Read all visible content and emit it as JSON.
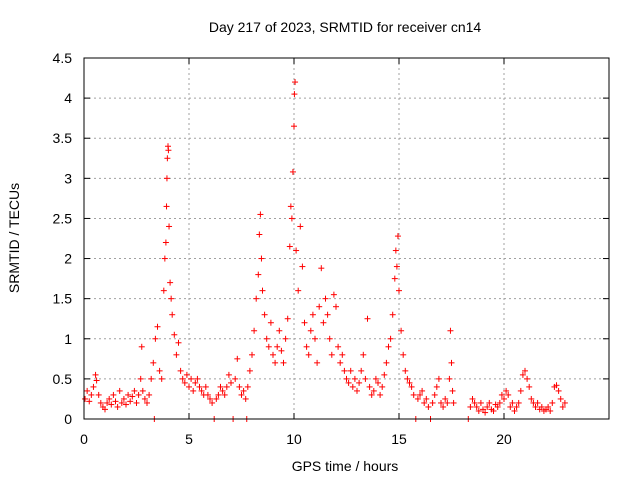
{
  "chart_data": {
    "type": "scatter",
    "title": "Day 217 of 2023, SRMTID for receiver cn14",
    "xlabel": "GPS time / hours",
    "ylabel": "SRMTID / TECUs",
    "xlim": [
      0,
      25
    ],
    "ylim": [
      0,
      4.5
    ],
    "xticks": [
      0,
      5,
      10,
      15,
      20
    ],
    "xtick_labels": [
      "0",
      "5",
      "10",
      "15",
      "20"
    ],
    "yticks": [
      0,
      0.5,
      1,
      1.5,
      2,
      2.5,
      3,
      3.5,
      4,
      4.5
    ],
    "ytick_labels": [
      "0",
      "0.5",
      "1",
      "1.5",
      "2",
      "2.5",
      "3",
      "3.5",
      "4",
      "4.5"
    ],
    "grid": true,
    "marker": "+",
    "color": "#ff0000",
    "series": [
      {
        "name": "SRMTID",
        "points": [
          [
            0.05,
            0.25
          ],
          [
            0.15,
            0.35
          ],
          [
            0.25,
            0.22
          ],
          [
            0.35,
            0.3
          ],
          [
            0.45,
            0.4
          ],
          [
            0.55,
            0.55
          ],
          [
            0.6,
            0.48
          ],
          [
            0.7,
            0.3
          ],
          [
            0.8,
            0.2
          ],
          [
            0.9,
            0.15
          ],
          [
            1.0,
            0.12
          ],
          [
            1.1,
            0.2
          ],
          [
            1.2,
            0.25
          ],
          [
            1.3,
            0.18
          ],
          [
            1.4,
            0.3
          ],
          [
            1.5,
            0.22
          ],
          [
            1.6,
            0.15
          ],
          [
            1.7,
            0.35
          ],
          [
            1.8,
            0.2
          ],
          [
            1.9,
            0.25
          ],
          [
            2.0,
            0.18
          ],
          [
            2.1,
            0.3
          ],
          [
            2.2,
            0.22
          ],
          [
            2.3,
            0.28
          ],
          [
            2.4,
            0.35
          ],
          [
            2.5,
            0.2
          ],
          [
            2.6,
            0.3
          ],
          [
            2.7,
            0.5
          ],
          [
            2.75,
            0.9
          ],
          [
            2.8,
            0.35
          ],
          [
            2.9,
            0.25
          ],
          [
            3.0,
            0.2
          ],
          [
            3.1,
            0.3
          ],
          [
            3.2,
            0.5
          ],
          [
            3.3,
            0.7
          ],
          [
            3.35,
            0.0
          ],
          [
            3.4,
            1.0
          ],
          [
            3.5,
            1.15
          ],
          [
            3.6,
            0.6
          ],
          [
            3.7,
            0.5
          ],
          [
            3.8,
            1.6
          ],
          [
            3.85,
            2.0
          ],
          [
            3.9,
            2.2
          ],
          [
            3.93,
            2.65
          ],
          [
            3.95,
            3.0
          ],
          [
            3.97,
            3.25
          ],
          [
            4.0,
            3.4
          ],
          [
            4.02,
            3.35
          ],
          [
            4.05,
            2.4
          ],
          [
            4.1,
            1.7
          ],
          [
            4.15,
            1.5
          ],
          [
            4.2,
            1.3
          ],
          [
            4.3,
            1.05
          ],
          [
            4.4,
            0.8
          ],
          [
            4.5,
            0.95
          ],
          [
            4.6,
            0.6
          ],
          [
            4.7,
            0.5
          ],
          [
            4.8,
            0.45
          ],
          [
            4.9,
            0.55
          ],
          [
            5.0,
            0.4
          ],
          [
            5.1,
            0.5
          ],
          [
            5.2,
            0.35
          ],
          [
            5.3,
            0.45
          ],
          [
            5.4,
            0.5
          ],
          [
            5.5,
            0.4
          ],
          [
            5.6,
            0.35
          ],
          [
            5.7,
            0.3
          ],
          [
            5.8,
            0.4
          ],
          [
            5.9,
            0.3
          ],
          [
            6.0,
            0.25
          ],
          [
            6.1,
            0.2
          ],
          [
            6.2,
            0.0
          ],
          [
            6.3,
            0.25
          ],
          [
            6.4,
            0.3
          ],
          [
            6.5,
            0.4
          ],
          [
            6.6,
            0.35
          ],
          [
            6.7,
            0.3
          ],
          [
            6.8,
            0.4
          ],
          [
            6.9,
            0.55
          ],
          [
            7.0,
            0.45
          ],
          [
            7.1,
            0.0
          ],
          [
            7.2,
            0.5
          ],
          [
            7.3,
            0.75
          ],
          [
            7.4,
            0.4
          ],
          [
            7.5,
            0.3
          ],
          [
            7.6,
            0.35
          ],
          [
            7.7,
            0.25
          ],
          [
            7.75,
            0.0
          ],
          [
            7.8,
            0.4
          ],
          [
            7.9,
            0.6
          ],
          [
            8.0,
            0.8
          ],
          [
            8.1,
            1.1
          ],
          [
            8.2,
            1.5
          ],
          [
            8.3,
            1.8
          ],
          [
            8.35,
            2.3
          ],
          [
            8.4,
            2.55
          ],
          [
            8.45,
            2.0
          ],
          [
            8.5,
            1.6
          ],
          [
            8.6,
            1.3
          ],
          [
            8.7,
            1.0
          ],
          [
            8.8,
            0.9
          ],
          [
            8.9,
            1.2
          ],
          [
            9.0,
            0.8
          ],
          [
            9.1,
            0.7
          ],
          [
            9.2,
            0.9
          ],
          [
            9.3,
            1.1
          ],
          [
            9.4,
            0.85
          ],
          [
            9.5,
            0.7
          ],
          [
            9.6,
            1.0
          ],
          [
            9.7,
            1.25
          ],
          [
            9.8,
            2.15
          ],
          [
            9.85,
            2.65
          ],
          [
            9.9,
            2.5
          ],
          [
            9.95,
            3.08
          ],
          [
            10.0,
            3.65
          ],
          [
            10.02,
            4.05
          ],
          [
            10.05,
            4.2
          ],
          [
            10.1,
            2.1
          ],
          [
            10.2,
            1.6
          ],
          [
            10.3,
            2.4
          ],
          [
            10.4,
            1.9
          ],
          [
            10.5,
            1.2
          ],
          [
            10.6,
            0.9
          ],
          [
            10.7,
            0.8
          ],
          [
            10.8,
            1.1
          ],
          [
            10.9,
            1.3
          ],
          [
            11.0,
            1.0
          ],
          [
            11.1,
            0.7
          ],
          [
            11.2,
            1.4
          ],
          [
            11.3,
            1.88
          ],
          [
            11.4,
            1.2
          ],
          [
            11.5,
            1.5
          ],
          [
            11.6,
            1.3
          ],
          [
            11.7,
            1.0
          ],
          [
            11.8,
            0.8
          ],
          [
            11.9,
            1.55
          ],
          [
            12.0,
            1.4
          ],
          [
            12.1,
            0.9
          ],
          [
            12.2,
            0.7
          ],
          [
            12.3,
            0.8
          ],
          [
            12.4,
            0.6
          ],
          [
            12.5,
            0.5
          ],
          [
            12.6,
            0.45
          ],
          [
            12.7,
            0.6
          ],
          [
            12.8,
            0.4
          ],
          [
            12.9,
            0.5
          ],
          [
            13.0,
            0.35
          ],
          [
            13.1,
            0.45
          ],
          [
            13.2,
            0.6
          ],
          [
            13.3,
            0.8
          ],
          [
            13.4,
            0.5
          ],
          [
            13.5,
            1.25
          ],
          [
            13.6,
            0.4
          ],
          [
            13.7,
            0.3
          ],
          [
            13.8,
            0.35
          ],
          [
            13.9,
            0.5
          ],
          [
            14.0,
            0.45
          ],
          [
            14.1,
            0.3
          ],
          [
            14.2,
            0.4
          ],
          [
            14.3,
            0.55
          ],
          [
            14.4,
            0.7
          ],
          [
            14.5,
            0.9
          ],
          [
            14.6,
            1.0
          ],
          [
            14.7,
            1.3
          ],
          [
            14.8,
            1.75
          ],
          [
            14.85,
            2.1
          ],
          [
            14.9,
            1.9
          ],
          [
            14.95,
            2.28
          ],
          [
            15.0,
            1.6
          ],
          [
            15.1,
            1.1
          ],
          [
            15.2,
            0.8
          ],
          [
            15.3,
            0.6
          ],
          [
            15.4,
            0.5
          ],
          [
            15.5,
            0.45
          ],
          [
            15.6,
            0.4
          ],
          [
            15.7,
            0.3
          ],
          [
            15.8,
            0.0
          ],
          [
            15.9,
            0.25
          ],
          [
            16.0,
            0.3
          ],
          [
            16.1,
            0.35
          ],
          [
            16.2,
            0.2
          ],
          [
            16.3,
            0.25
          ],
          [
            16.4,
            0.15
          ],
          [
            16.5,
            0.0
          ],
          [
            16.6,
            0.2
          ],
          [
            16.7,
            0.3
          ],
          [
            16.8,
            0.4
          ],
          [
            16.9,
            0.5
          ],
          [
            17.0,
            0.2
          ],
          [
            17.1,
            0.15
          ],
          [
            17.2,
            0.25
          ],
          [
            17.3,
            0.2
          ],
          [
            17.4,
            0.5
          ],
          [
            17.45,
            1.1
          ],
          [
            17.5,
            0.7
          ],
          [
            17.55,
            0.35
          ],
          [
            17.6,
            0.2
          ],
          [
            18.3,
            0.0
          ],
          [
            18.4,
            0.15
          ],
          [
            18.5,
            0.25
          ],
          [
            18.6,
            0.2
          ],
          [
            18.7,
            0.15
          ],
          [
            18.8,
            0.1
          ],
          [
            18.9,
            0.2
          ],
          [
            19.0,
            0.12
          ],
          [
            19.1,
            0.08
          ],
          [
            19.2,
            0.15
          ],
          [
            19.3,
            0.2
          ],
          [
            19.4,
            0.12
          ],
          [
            19.5,
            0.1
          ],
          [
            19.6,
            0.18
          ],
          [
            19.7,
            0.15
          ],
          [
            19.8,
            0.2
          ],
          [
            19.9,
            0.3
          ],
          [
            20.0,
            0.25
          ],
          [
            20.1,
            0.35
          ],
          [
            20.2,
            0.3
          ],
          [
            20.3,
            0.15
          ],
          [
            20.4,
            0.2
          ],
          [
            20.5,
            0.1
          ],
          [
            20.6,
            0.15
          ],
          [
            20.7,
            0.2
          ],
          [
            20.8,
            0.35
          ],
          [
            20.9,
            0.55
          ],
          [
            21.0,
            0.6
          ],
          [
            21.1,
            0.5
          ],
          [
            21.2,
            0.4
          ],
          [
            21.3,
            0.25
          ],
          [
            21.4,
            0.2
          ],
          [
            21.5,
            0.15
          ],
          [
            21.6,
            0.2
          ],
          [
            21.7,
            0.12
          ],
          [
            21.8,
            0.15
          ],
          [
            21.9,
            0.1
          ],
          [
            22.0,
            0.12
          ],
          [
            22.1,
            0.15
          ],
          [
            22.2,
            0.1
          ],
          [
            22.3,
            0.2
          ],
          [
            22.4,
            0.4
          ],
          [
            22.5,
            0.42
          ],
          [
            22.6,
            0.35
          ],
          [
            22.7,
            0.25
          ],
          [
            22.8,
            0.15
          ],
          [
            22.9,
            0.2
          ]
        ]
      }
    ]
  }
}
